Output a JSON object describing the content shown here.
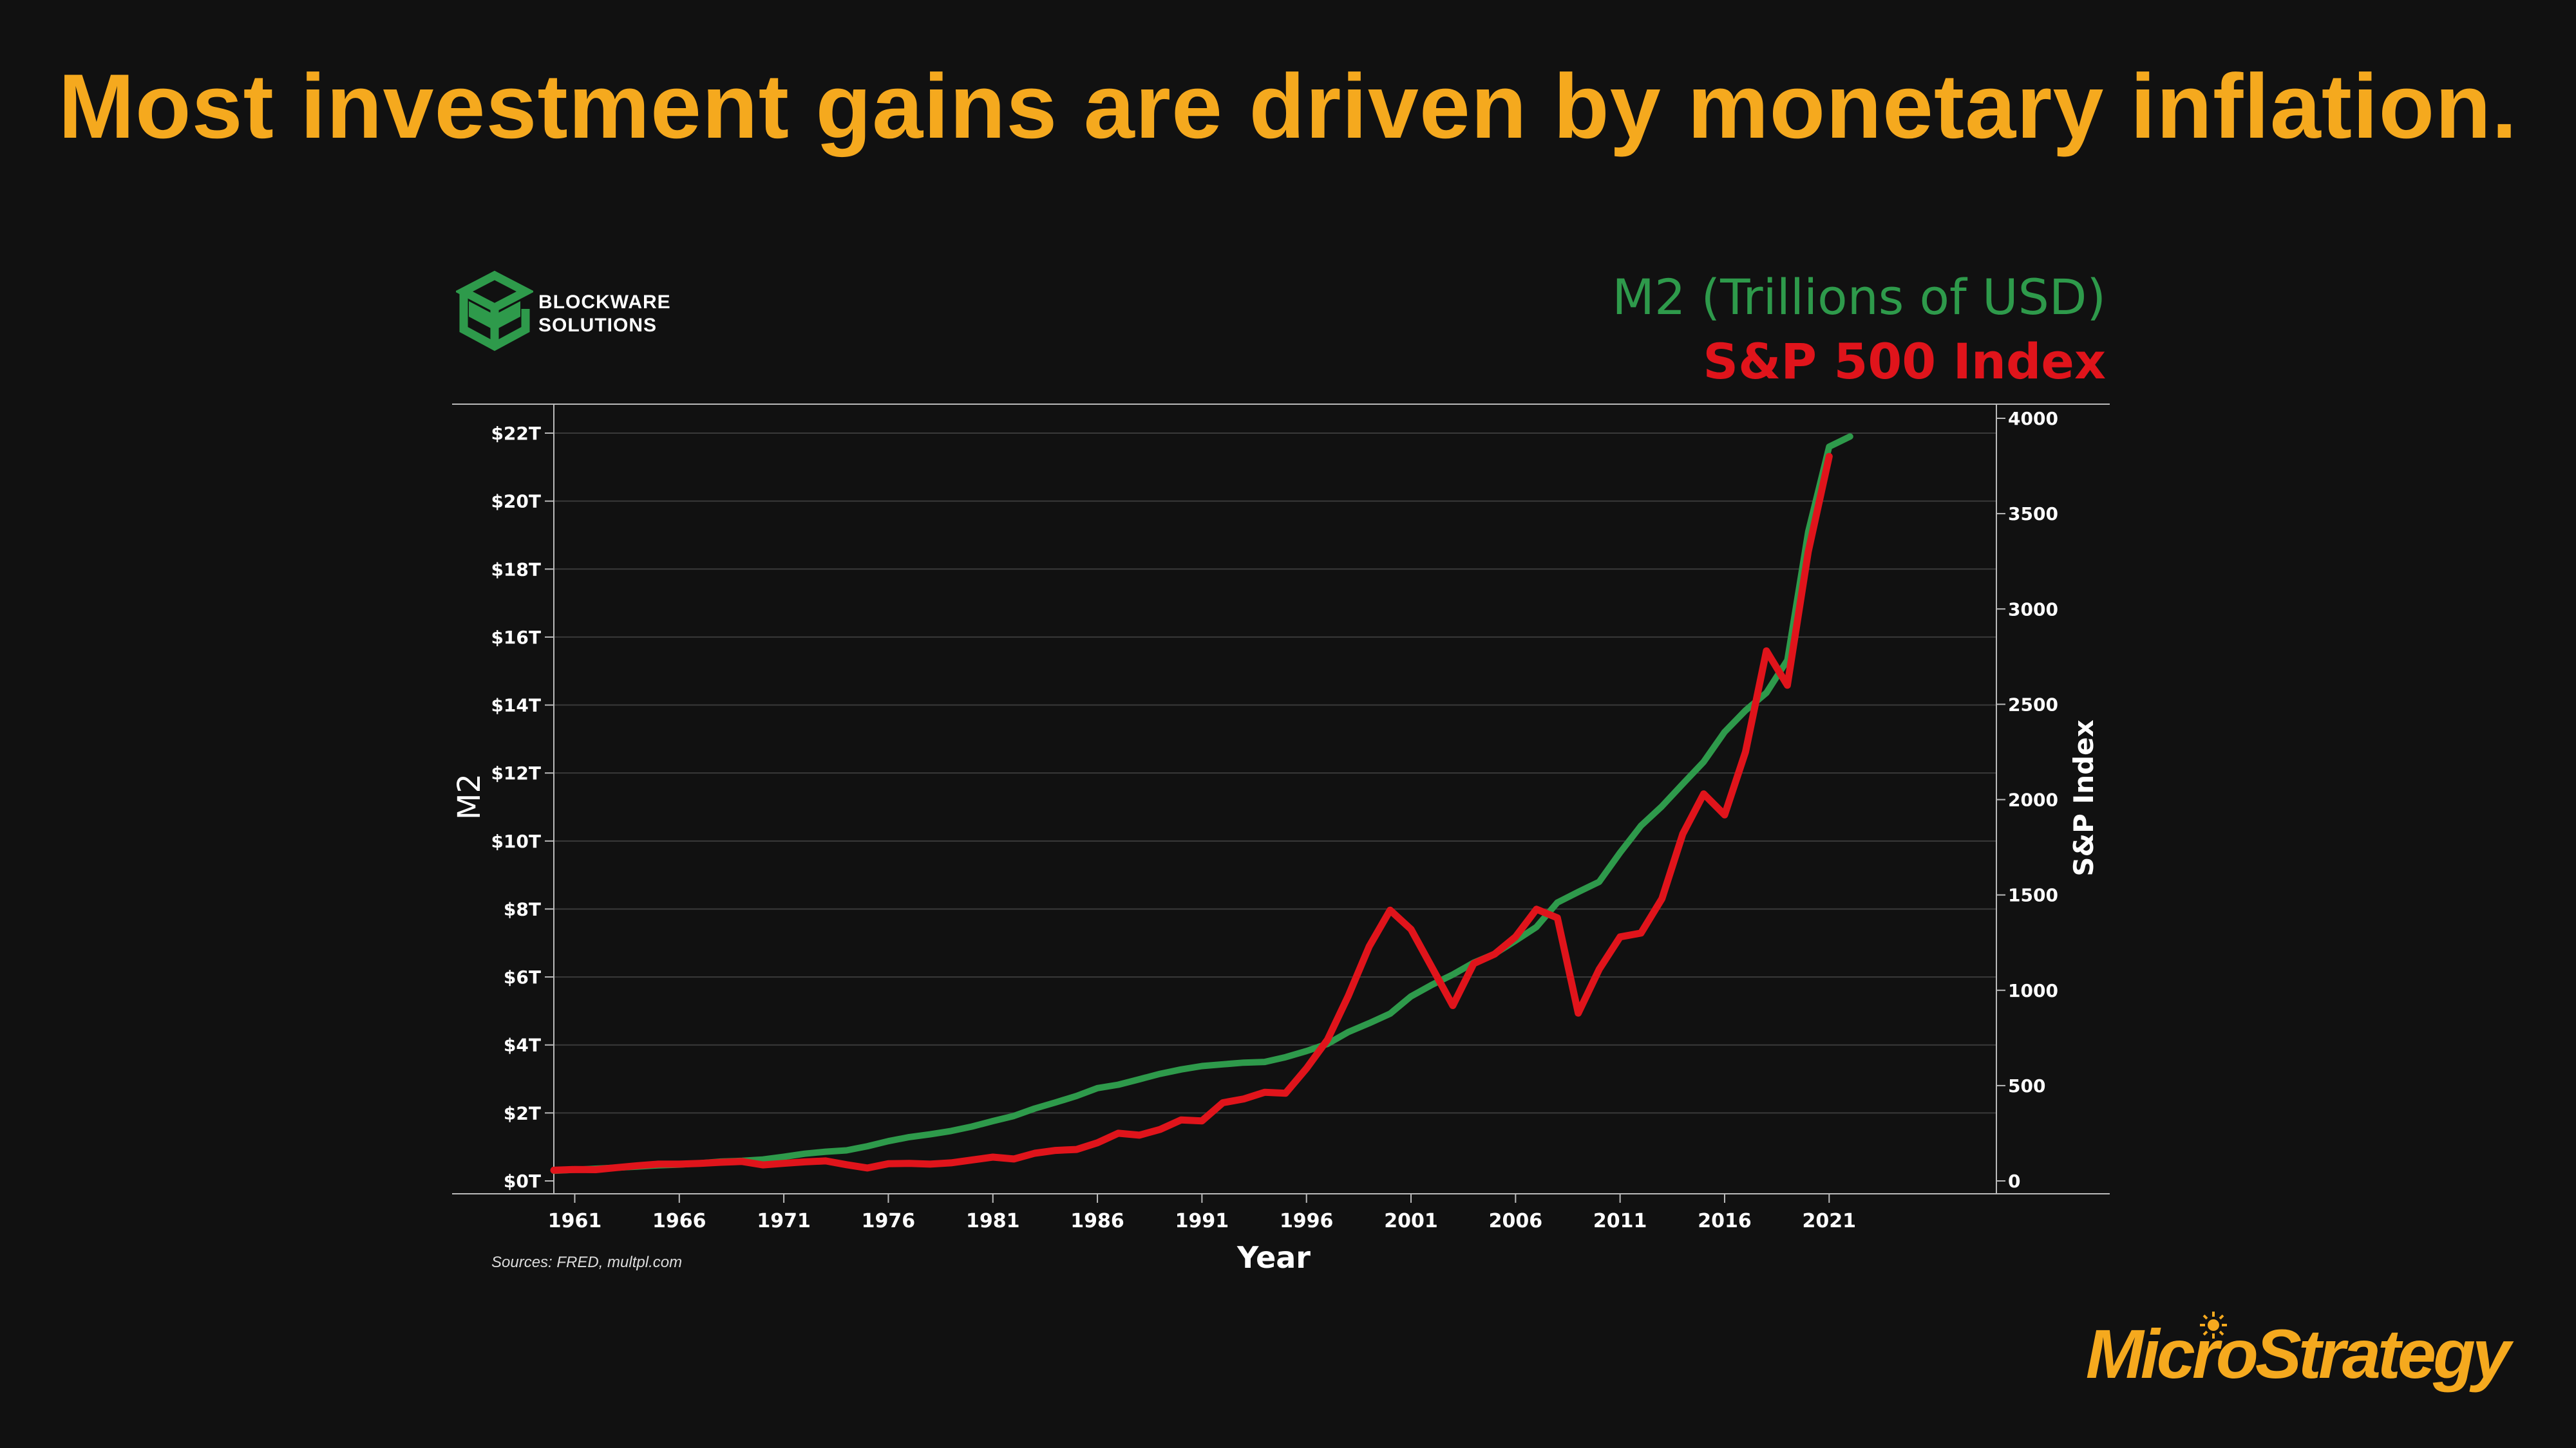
{
  "slide": {
    "title": "Most investment gains are driven by monetary inflation.",
    "source": "Sources: FRED, multpl.com",
    "brand": "MicroStrategy",
    "logo_line1": "BLOCKWARE",
    "logo_line2": "SOLUTIONS"
  },
  "colors": {
    "background": "#111111",
    "title": "#F5A91E",
    "m2": "#2E9A4B",
    "sp500": "#E0141B",
    "grid": "#3a3a3a",
    "axis": "#bbbbbb",
    "text": "#ffffff"
  },
  "icons": {
    "logo": "blockware-cube-icon",
    "brand_mark": "sun-icon"
  },
  "chart_data": {
    "type": "line",
    "xlabel": "Year",
    "ylabel_left": "M2",
    "ylabel_right": "S&P Index",
    "xlim": [
      1960,
      2029
    ],
    "ylim_left": [
      0,
      22
    ],
    "ylim_right": [
      0,
      4000
    ],
    "x_ticks": [
      1961,
      1966,
      1971,
      1976,
      1981,
      1986,
      1991,
      1996,
      2001,
      2006,
      2011,
      2016,
      2021
    ],
    "y_ticks_left": [
      0,
      2,
      4,
      6,
      8,
      10,
      12,
      14,
      16,
      18,
      20,
      22
    ],
    "y_tick_labels_left": [
      "$0T",
      "$2T",
      "$4T",
      "$6T",
      "$8T",
      "$10T",
      "$12T",
      "$14T",
      "$16T",
      "$18T",
      "$20T",
      "$22T"
    ],
    "y_ticks_right": [
      0,
      500,
      1000,
      1500,
      2000,
      2500,
      3000,
      3500,
      4000
    ],
    "y_tick_labels_right": [
      "0",
      "500",
      "1000",
      "1500",
      "2000",
      "2500",
      "3000",
      "3500",
      "4000"
    ],
    "grid": true,
    "legend": "top-right",
    "series": [
      {
        "name": "M2 (Trillions of USD)",
        "axis": "left",
        "color": "#2E9A4B",
        "x": [
          1960,
          1961,
          1962,
          1963,
          1964,
          1965,
          1966,
          1967,
          1968,
          1969,
          1970,
          1971,
          1972,
          1973,
          1974,
          1975,
          1976,
          1977,
          1978,
          1979,
          1980,
          1981,
          1982,
          1983,
          1984,
          1985,
          1986,
          1987,
          1988,
          1989,
          1990,
          1991,
          1992,
          1993,
          1994,
          1995,
          1996,
          1997,
          1998,
          1999,
          2000,
          2001,
          2002,
          2003,
          2004,
          2005,
          2006,
          2007,
          2008,
          2009,
          2010,
          2011,
          2012,
          2013,
          2014,
          2015,
          2016,
          2017,
          2018,
          2019,
          2020,
          2021,
          2022
        ],
        "values": [
          0.3,
          0.33,
          0.36,
          0.39,
          0.42,
          0.46,
          0.48,
          0.52,
          0.57,
          0.59,
          0.63,
          0.71,
          0.8,
          0.86,
          0.9,
          1.02,
          1.17,
          1.29,
          1.37,
          1.47,
          1.6,
          1.76,
          1.91,
          2.13,
          2.31,
          2.5,
          2.73,
          2.83,
          2.99,
          3.15,
          3.28,
          3.38,
          3.43,
          3.48,
          3.5,
          3.64,
          3.82,
          4.03,
          4.38,
          4.64,
          4.92,
          5.43,
          5.77,
          6.07,
          6.42,
          6.68,
          7.07,
          7.47,
          8.19,
          8.5,
          8.8,
          9.66,
          10.45,
          11.02,
          11.68,
          12.33,
          13.21,
          13.84,
          14.36,
          15.32,
          19.1,
          21.6,
          21.9
        ]
      },
      {
        "name": "S&P 500 Index",
        "axis": "right",
        "color": "#E0141B",
        "x": [
          1960,
          1961,
          1962,
          1963,
          1964,
          1965,
          1966,
          1967,
          1968,
          1969,
          1970,
          1971,
          1972,
          1973,
          1974,
          1975,
          1976,
          1977,
          1978,
          1979,
          1980,
          1981,
          1982,
          1983,
          1984,
          1985,
          1986,
          1987,
          1988,
          1989,
          1990,
          1991,
          1992,
          1993,
          1994,
          1995,
          1996,
          1997,
          1998,
          1999,
          2000,
          2001,
          2002,
          2003,
          2004,
          2005,
          2006,
          2007,
          2008,
          2009,
          2010,
          2011,
          2012,
          2013,
          2014,
          2015,
          2016,
          2017,
          2018,
          2019,
          2020,
          2021
        ],
        "values": [
          56,
          60,
          59,
          70,
          80,
          88,
          88,
          92,
          98,
          102,
          84,
          92,
          100,
          105,
          85,
          68,
          90,
          92,
          88,
          95,
          110,
          125,
          115,
          145,
          160,
          165,
          200,
          250,
          240,
          270,
          320,
          315,
          410,
          430,
          465,
          460,
          590,
          740,
          970,
          1230,
          1420,
          1320,
          1120,
          920,
          1140,
          1190,
          1280,
          1425,
          1380,
          880,
          1110,
          1280,
          1300,
          1480,
          1820,
          2030,
          1920,
          2250,
          2780,
          2600,
          3300,
          3800
        ]
      }
    ]
  }
}
